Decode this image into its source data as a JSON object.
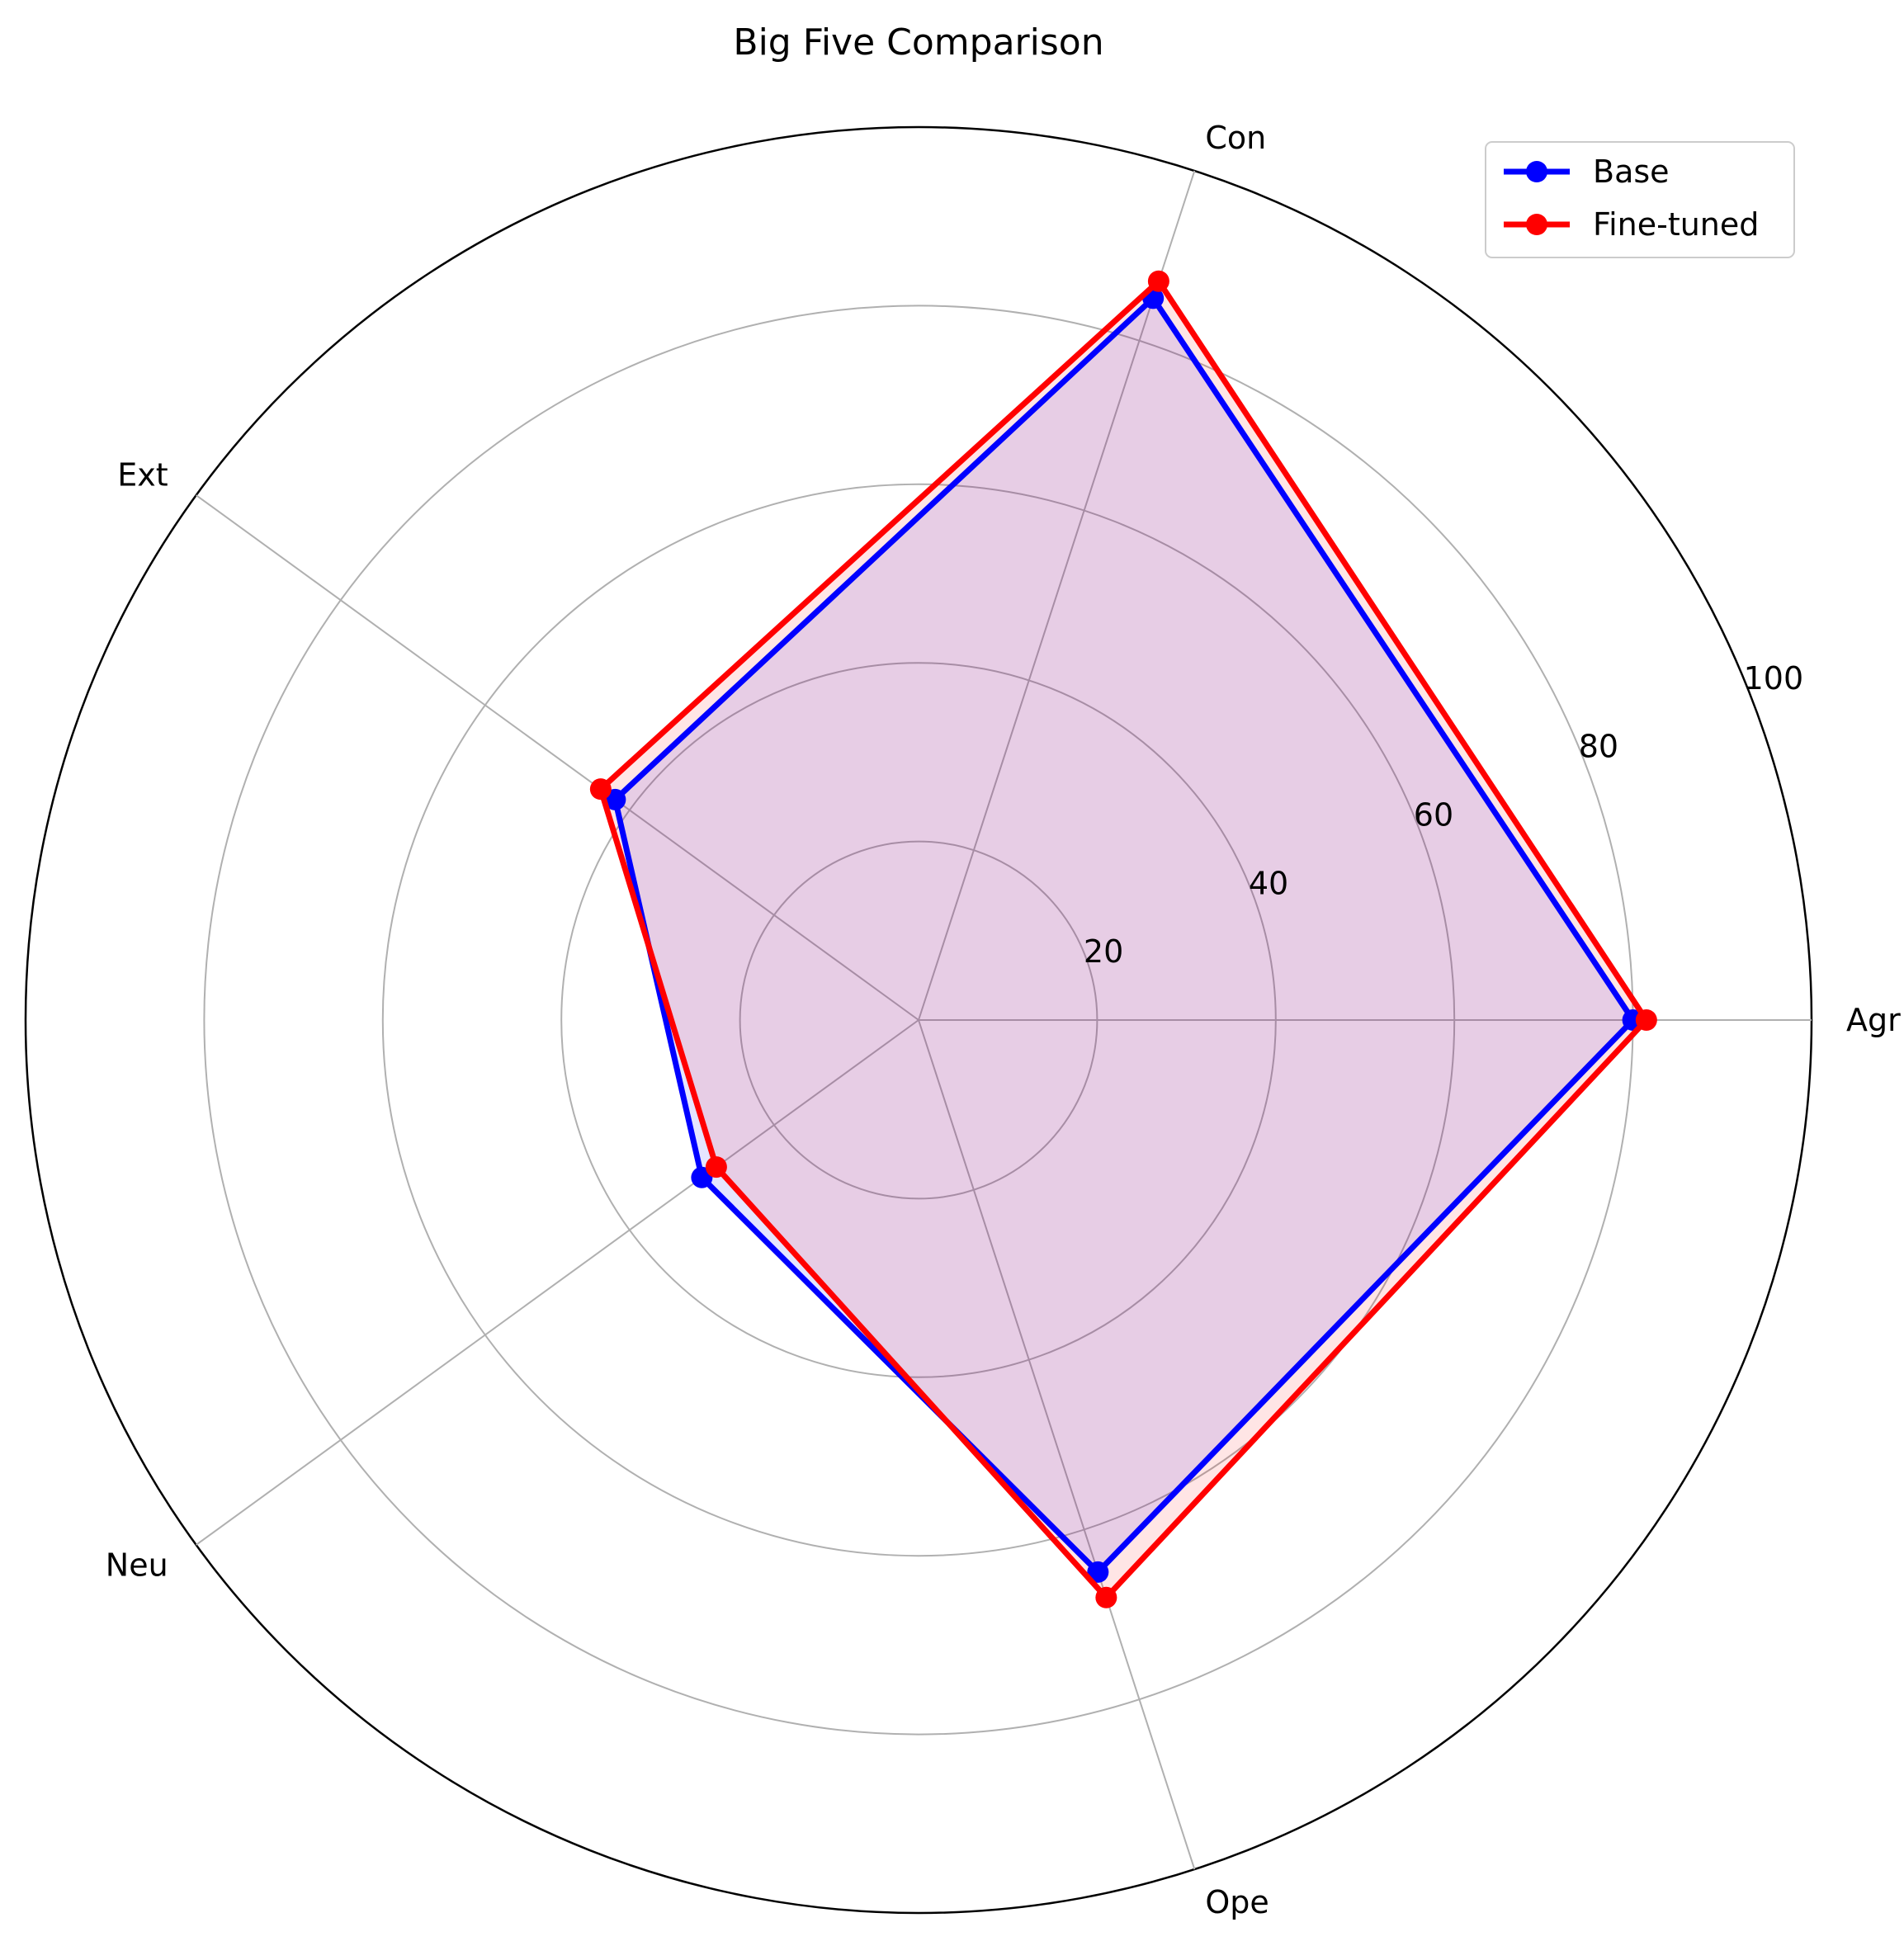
{
  "chart_data": {
    "type": "radar",
    "title": "Big Five Comparison",
    "categories": [
      "Agr",
      "Con",
      "Ext",
      "Neu",
      "Ope"
    ],
    "radial_ticks": [
      20,
      40,
      60,
      80,
      100
    ],
    "rlim": [
      0,
      100
    ],
    "grid": true,
    "legend_position": "top-right",
    "series": [
      {
        "name": "Base",
        "color": "#0000ff",
        "values": [
          80,
          85,
          42,
          30,
          65
        ]
      },
      {
        "name": "Fine-tuned",
        "color": "#ff0000",
        "values": [
          81.5,
          87,
          44,
          28,
          68
        ]
      }
    ],
    "fill_color": "#e8cce6"
  }
}
